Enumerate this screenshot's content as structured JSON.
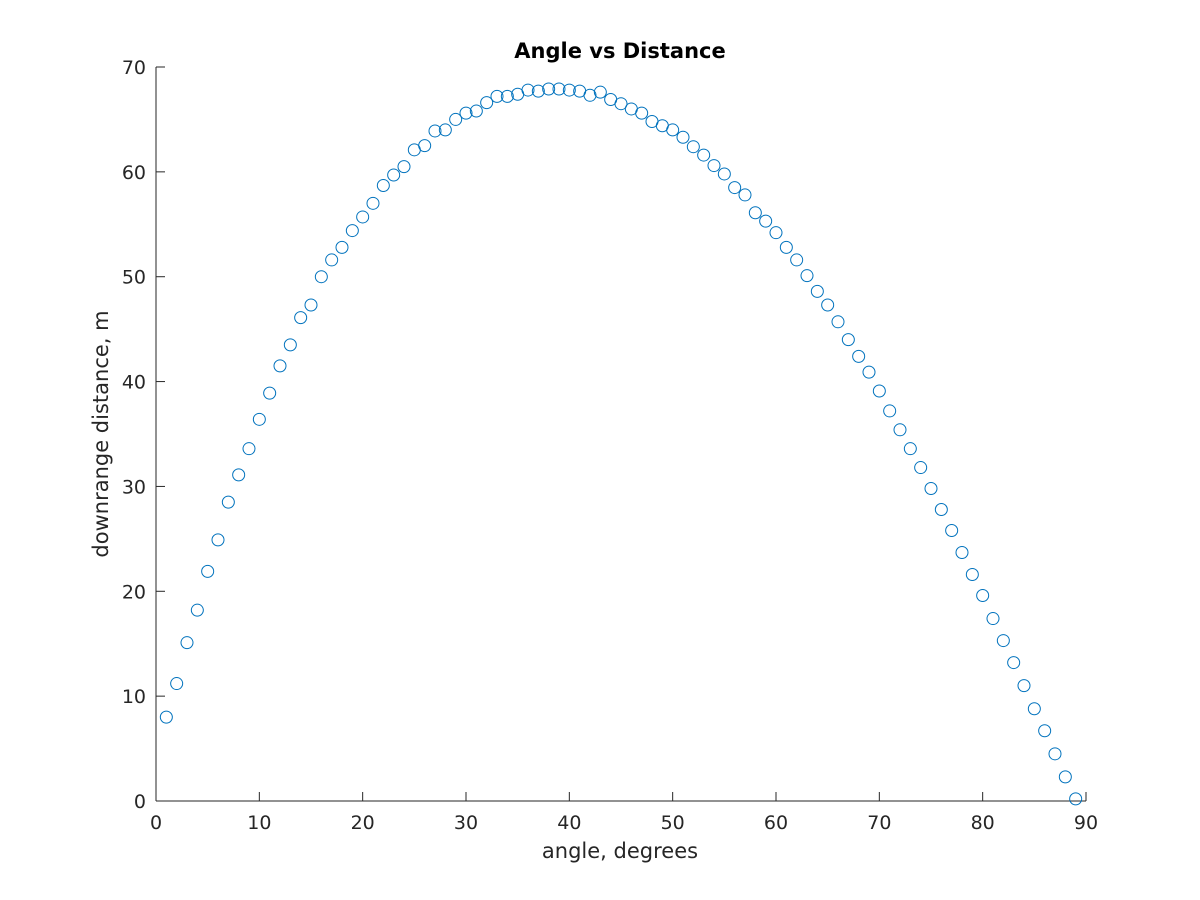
{
  "chart_data": {
    "type": "scatter",
    "title": "Angle vs Distance",
    "xlabel": "angle, degrees",
    "ylabel": "downrange distance, m",
    "xlim": [
      0,
      90
    ],
    "ylim": [
      0,
      70
    ],
    "xticks": [
      0,
      10,
      20,
      30,
      40,
      50,
      60,
      70,
      80,
      90
    ],
    "yticks": [
      0,
      10,
      20,
      30,
      40,
      50,
      60,
      70
    ],
    "grid": false,
    "marker": "open-circle",
    "marker_color": "#0072BD",
    "x": [
      1,
      2,
      3,
      4,
      5,
      6,
      7,
      8,
      9,
      10,
      11,
      12,
      13,
      14,
      15,
      16,
      17,
      18,
      19,
      20,
      21,
      22,
      23,
      24,
      25,
      26,
      27,
      28,
      29,
      30,
      31,
      32,
      33,
      34,
      35,
      36,
      37,
      38,
      39,
      40,
      41,
      42,
      43,
      44,
      45,
      46,
      47,
      48,
      49,
      50,
      51,
      52,
      53,
      54,
      55,
      56,
      57,
      58,
      59,
      60,
      61,
      62,
      63,
      64,
      65,
      66,
      67,
      68,
      69,
      70,
      71,
      72,
      73,
      74,
      75,
      76,
      77,
      78,
      79,
      80,
      81,
      82,
      83,
      84,
      85,
      86,
      87,
      88,
      89
    ],
    "y": [
      8.0,
      11.2,
      15.1,
      18.2,
      21.9,
      24.9,
      28.5,
      31.1,
      33.6,
      36.4,
      38.9,
      41.5,
      43.5,
      46.1,
      47.3,
      50.0,
      51.6,
      52.8,
      54.4,
      55.7,
      57.0,
      58.7,
      59.7,
      60.5,
      62.1,
      62.5,
      63.9,
      64.0,
      65.0,
      65.6,
      65.8,
      66.6,
      67.2,
      67.2,
      67.4,
      67.8,
      67.7,
      67.9,
      67.9,
      67.8,
      67.7,
      67.3,
      67.6,
      66.9,
      66.5,
      66.0,
      65.6,
      64.8,
      64.4,
      64.0,
      63.3,
      62.4,
      61.6,
      60.6,
      59.8,
      58.5,
      57.8,
      56.1,
      55.3,
      54.2,
      52.8,
      51.6,
      50.1,
      48.6,
      47.3,
      45.7,
      44.0,
      42.4,
      40.9,
      39.1,
      37.2,
      35.4,
      33.6,
      31.8,
      29.8,
      27.8,
      25.8,
      23.7,
      21.6,
      19.6,
      17.4,
      15.3,
      13.2,
      11.0,
      8.8,
      6.7,
      4.5,
      2.3,
      0.2
    ]
  }
}
